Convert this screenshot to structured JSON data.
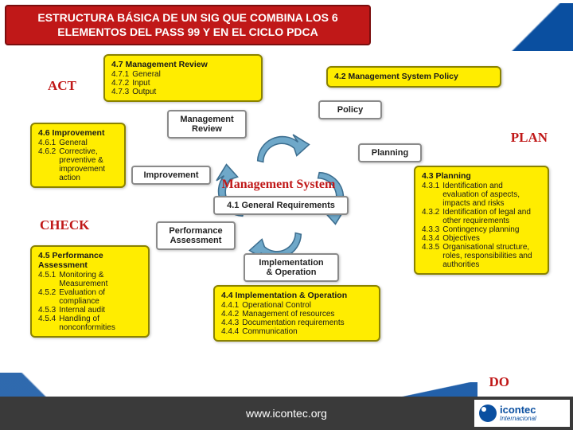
{
  "title": "ESTRUCTURA BÁSICA DE UN SIG QUE COMBINA LOS 6 ELEMENTOS DEL PASS 99 Y EN EL CICLO PDCA",
  "pdca": {
    "act": "ACT",
    "plan": "PLAN",
    "check": "CHECK",
    "do": "DO"
  },
  "center": "Management System",
  "wboxes": {
    "mgmtReview": "Management\nReview",
    "policy": "Policy",
    "planning": "Planning",
    "improvement": "Improvement",
    "genReq": "4.1 General Requirements",
    "perfAssess": "Performance\nAssessment",
    "implOp": "Implementation\n& Operation"
  },
  "boxes": {
    "b47": {
      "head": "4.7   Management Review",
      "items": [
        [
          "4.7.1",
          "General"
        ],
        [
          "4.7.2",
          "Input"
        ],
        [
          "4.7.3",
          "Output"
        ]
      ]
    },
    "b42": {
      "head": "4.2   Management System Policy",
      "items": []
    },
    "b46": {
      "head": "4.6   Improvement",
      "items": [
        [
          "4.6.1",
          "General"
        ],
        [
          "4.6.2",
          "Corrective, preventive & improvement action"
        ]
      ]
    },
    "b43": {
      "head": "4.3   Planning",
      "items": [
        [
          "4.3.1",
          "Identification and evaluation of aspects, impacts and risks"
        ],
        [
          "4.3.2",
          "Identification of legal and other requirements"
        ],
        [
          "4.3.3",
          "Contingency planning"
        ],
        [
          "4.3.4",
          "Objectives"
        ],
        [
          "4.3.5",
          "Organisational structure, roles, responsibilities and authorities"
        ]
      ]
    },
    "b45": {
      "head": "4.5   Performance Assessment",
      "items": [
        [
          "4.5.1",
          "Monitoring & Measurement"
        ],
        [
          "4.5.2",
          "Evaluation of compliance"
        ],
        [
          "4.5.3",
          "Internal audit"
        ],
        [
          "4.5.4",
          "Handling of nonconformities"
        ]
      ]
    },
    "b44": {
      "head": "4.4   Implementation & Operation",
      "items": [
        [
          "4.4.1",
          "Operational Control"
        ],
        [
          "4.4.2",
          "Management of resources"
        ],
        [
          "4.4.3",
          "Documentation requirements"
        ],
        [
          "4.4.4",
          "Communication"
        ]
      ]
    }
  },
  "footer": "www.icontec.org",
  "logo": {
    "name": "icontec",
    "sub": "Internacional"
  },
  "colors": {
    "red": "#c01818",
    "yellow": "#ffed00",
    "yborder": "#8a8200",
    "blue": "#0a4fa0",
    "arrow": "#6fa8c9",
    "footer": "#3a3a3a"
  }
}
